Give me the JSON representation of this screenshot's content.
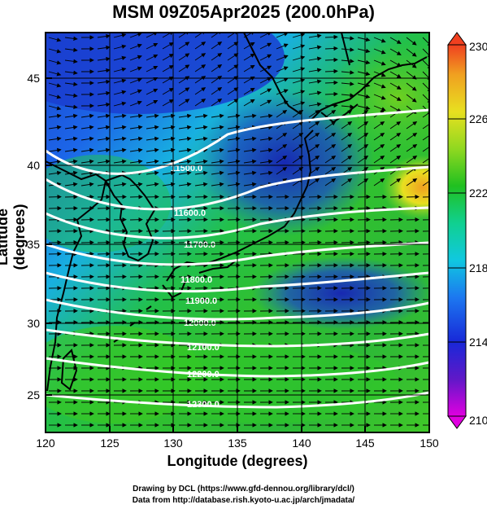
{
  "title": "MSM 09Z05Apr2025 (200.0hPa)",
  "xlabel": "Longitude (degrees)",
  "ylabel": "Latitude  (degrees)",
  "footer": {
    "line1": "Drawing by DCL (https://www.gfd-dennou.org/library/dcl/)",
    "line2": "Data from http://database.rish.kyoto-u.ac.jp/arch/jmadata/"
  },
  "map": {
    "lon_range": [
      120,
      150
    ],
    "lat_range": [
      22.5,
      47.5
    ],
    "x_ticks": [
      "120",
      "125",
      "130",
      "135",
      "140",
      "145",
      "150"
    ],
    "y_ticks": [
      "25",
      "30",
      "35",
      "40",
      "45"
    ],
    "field": "temperature (K) shading, geopotential height contours, wind vectors",
    "contour_labels": [
      "11500.0",
      "11600.0",
      "11700.0",
      "11800.0",
      "11900.0",
      "12000.0",
      "12100.0",
      "12200.0",
      "12300.0"
    ]
  },
  "colorbar": {
    "min": 210,
    "max": 230,
    "tick_labels": [
      "230",
      "226",
      "222",
      "218",
      "214",
      "210"
    ],
    "colors": [
      "#e000e0",
      "#6018c8",
      "#1828d8",
      "#1c78f0",
      "#10c8e0",
      "#10d090",
      "#20c020",
      "#90d820",
      "#e8e020",
      "#f0a020",
      "#f04020"
    ]
  }
}
